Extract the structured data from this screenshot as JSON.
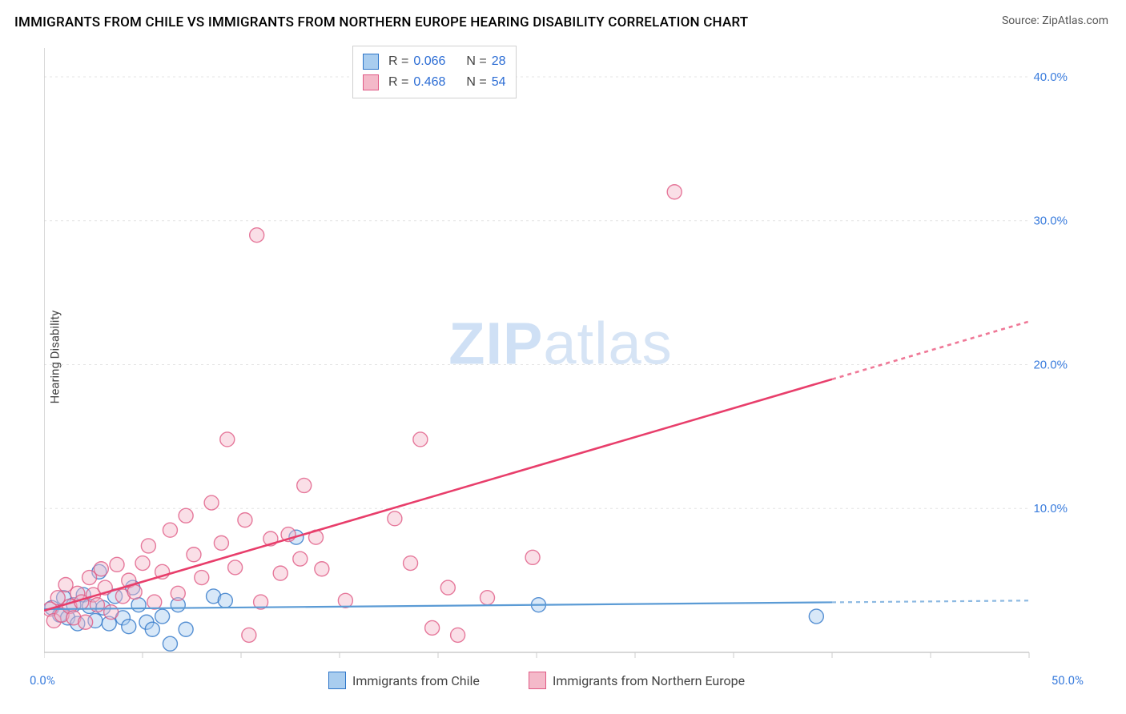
{
  "title": "IMMIGRANTS FROM CHILE VS IMMIGRANTS FROM NORTHERN EUROPE HEARING DISABILITY CORRELATION CHART",
  "source": "Source: ZipAtlas.com",
  "ylabel": "Hearing Disability",
  "watermark": {
    "bold": "ZIP",
    "light": "atlas"
  },
  "chart": {
    "type": "scatter",
    "xlim": [
      0,
      50
    ],
    "ylim": [
      0,
      42
    ],
    "xtick_labels": [
      "0.0%",
      "50.0%"
    ],
    "ytick_values": [
      10,
      20,
      30,
      40
    ],
    "ytick_labels": [
      "10.0%",
      "20.0%",
      "30.0%",
      "40.0%"
    ],
    "grid_color": "#e4e4e4",
    "axis_color": "#cccccc",
    "background_color": "#ffffff",
    "marker_radius": 9,
    "marker_opacity": 0.45,
    "series": [
      {
        "key": "chile",
        "label": "Immigrants from Chile",
        "color": "#5b9bd5",
        "fill": "#a9cdef",
        "stroke": "#2e75c8",
        "R": "0.066",
        "N": "28",
        "trend": {
          "x1": 0,
          "y1": 3.0,
          "x2": 50,
          "y2": 3.6,
          "width": 2.2,
          "solid_until_x": 40
        },
        "points": [
          [
            0.4,
            3.1
          ],
          [
            0.8,
            2.6
          ],
          [
            1.0,
            3.8
          ],
          [
            1.2,
            2.4
          ],
          [
            1.5,
            3.3
          ],
          [
            1.7,
            2.0
          ],
          [
            2.0,
            4.0
          ],
          [
            2.3,
            3.2
          ],
          [
            2.6,
            2.2
          ],
          [
            2.8,
            5.6
          ],
          [
            3.0,
            3.1
          ],
          [
            3.3,
            2.0
          ],
          [
            3.6,
            3.9
          ],
          [
            4.0,
            2.4
          ],
          [
            4.3,
            1.8
          ],
          [
            4.5,
            4.5
          ],
          [
            4.8,
            3.3
          ],
          [
            5.2,
            2.1
          ],
          [
            5.5,
            1.6
          ],
          [
            6.0,
            2.5
          ],
          [
            6.4,
            0.6
          ],
          [
            6.8,
            3.3
          ],
          [
            7.2,
            1.6
          ],
          [
            8.6,
            3.9
          ],
          [
            9.2,
            3.6
          ],
          [
            12.8,
            8.0
          ],
          [
            25.1,
            3.3
          ],
          [
            39.2,
            2.5
          ]
        ]
      },
      {
        "key": "neurope",
        "label": "Immigrants from Northern Europe",
        "color": "#e83e6b",
        "fill": "#f4b9c9",
        "stroke": "#e05a85",
        "R": "0.468",
        "N": "54",
        "trend": {
          "x1": 0,
          "y1": 2.9,
          "x2": 50,
          "y2": 23.0,
          "width": 2.6,
          "solid_until_x": 40
        },
        "points": [
          [
            0.3,
            3.0
          ],
          [
            0.5,
            2.2
          ],
          [
            0.7,
            3.8
          ],
          [
            0.9,
            2.6
          ],
          [
            1.1,
            4.7
          ],
          [
            1.3,
            3.2
          ],
          [
            1.5,
            2.4
          ],
          [
            1.7,
            4.1
          ],
          [
            1.9,
            3.5
          ],
          [
            2.1,
            2.1
          ],
          [
            2.3,
            5.2
          ],
          [
            2.5,
            4.0
          ],
          [
            2.7,
            3.3
          ],
          [
            2.9,
            5.8
          ],
          [
            3.1,
            4.5
          ],
          [
            3.4,
            2.8
          ],
          [
            3.7,
            6.1
          ],
          [
            4.0,
            3.9
          ],
          [
            4.3,
            5.0
          ],
          [
            4.6,
            4.2
          ],
          [
            5.0,
            6.2
          ],
          [
            5.3,
            7.4
          ],
          [
            5.6,
            3.5
          ],
          [
            6.0,
            5.6
          ],
          [
            6.4,
            8.5
          ],
          [
            6.8,
            4.1
          ],
          [
            7.2,
            9.5
          ],
          [
            7.6,
            6.8
          ],
          [
            8.0,
            5.2
          ],
          [
            8.5,
            10.4
          ],
          [
            9.0,
            7.6
          ],
          [
            9.3,
            14.8
          ],
          [
            9.7,
            5.9
          ],
          [
            10.2,
            9.2
          ],
          [
            10.4,
            1.2
          ],
          [
            10.8,
            29.0
          ],
          [
            11.0,
            3.5
          ],
          [
            11.5,
            7.9
          ],
          [
            12.0,
            5.5
          ],
          [
            12.4,
            8.2
          ],
          [
            13.0,
            6.5
          ],
          [
            13.2,
            11.6
          ],
          [
            13.8,
            8.0
          ],
          [
            14.1,
            5.8
          ],
          [
            15.3,
            3.6
          ],
          [
            17.8,
            9.3
          ],
          [
            18.6,
            6.2
          ],
          [
            19.1,
            14.8
          ],
          [
            19.7,
            1.7
          ],
          [
            20.5,
            4.5
          ],
          [
            21.0,
            1.2
          ],
          [
            22.5,
            3.8
          ],
          [
            24.8,
            6.6
          ],
          [
            32.0,
            32.0
          ]
        ]
      }
    ]
  },
  "legend_items": [
    {
      "series": "chile",
      "label": "Immigrants from Chile"
    },
    {
      "series": "neurope",
      "label": "Immigrants from Northern Europe"
    }
  ]
}
